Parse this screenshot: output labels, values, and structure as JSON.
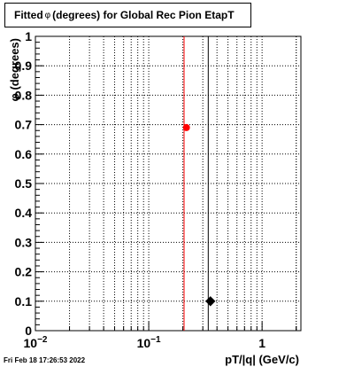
{
  "title": {
    "prefix": "Fitted",
    "symbol": "φ",
    "suffix": "(degrees) for Global Rec Pion EtapT"
  },
  "footer": {
    "timestamp": "Fri Feb 18 17:26:53 2022"
  },
  "chart_data": {
    "type": "scatter",
    "title": "Fitted φ (degrees) for Global Rec Pion EtapT",
    "xlabel": "pT/|q| (GeV/c)",
    "ylabel": "φ (degrees)",
    "xscale": "log",
    "xlim": [
      0.01,
      2.2
    ],
    "ylim": [
      0,
      1
    ],
    "grid": true,
    "x_ticks": [
      {
        "value": 0.01,
        "base": "10",
        "exp": "−2"
      },
      {
        "value": 0.1,
        "base": "10",
        "exp": "−1"
      },
      {
        "value": 1,
        "base": "1",
        "exp": ""
      }
    ],
    "y_ticks": [
      "0",
      "0.1",
      "0.2",
      "0.3",
      "0.4",
      "0.5",
      "0.6",
      "0.7",
      "0.8",
      "0.9",
      "1"
    ],
    "series": [
      {
        "color": "#ff0000",
        "x": [
          0.215
        ],
        "y": [
          0.69
        ],
        "vline_x": 0.205
      },
      {
        "color": "#000000",
        "x": [
          0.35
        ],
        "y": [
          0.1
        ],
        "vline_x": 0.335
      }
    ]
  }
}
